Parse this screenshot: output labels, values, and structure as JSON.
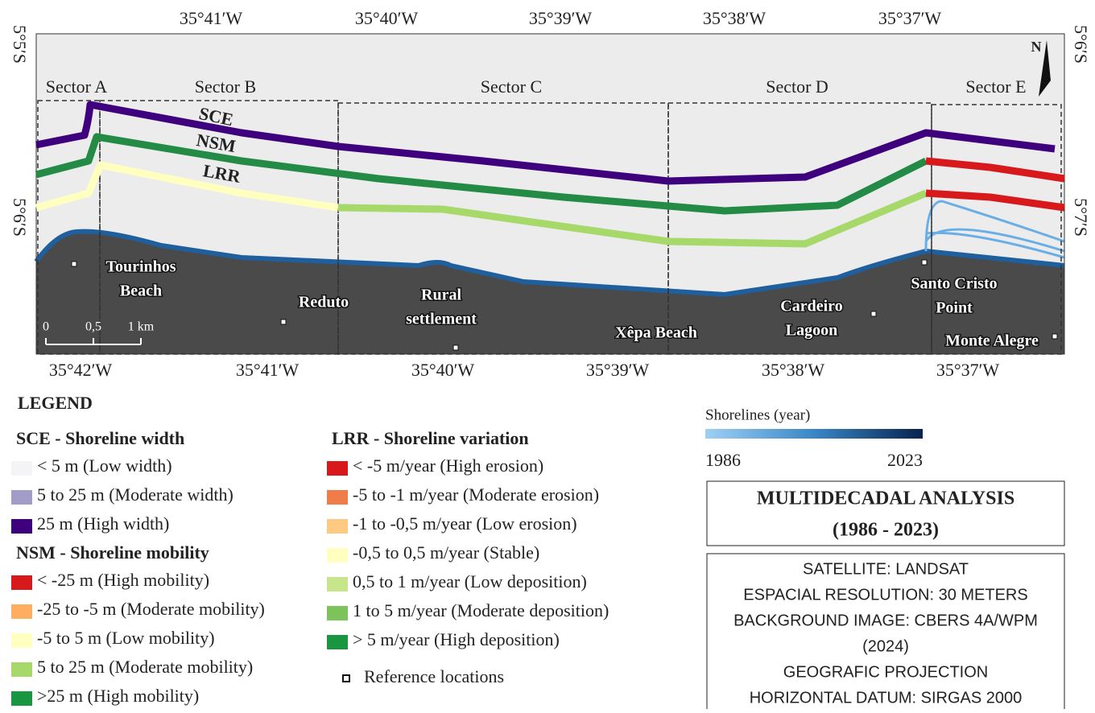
{
  "map": {
    "top_labels": [
      "35°41′W",
      "35°40′W",
      "35°39′W",
      "35°38′W",
      "35°37′W"
    ],
    "bottom_labels": [
      "35°42′W",
      "35°41′W",
      "35°40′W",
      "35°39′W",
      "35°38′W",
      "35°37′W"
    ],
    "left_labels": [
      "5°5′S",
      "5°6′S"
    ],
    "right_labels": [
      "5°6′S",
      "5°7′S"
    ],
    "sectors": [
      "Sector A",
      "Sector B",
      "Sector C",
      "Sector D",
      "Sector E"
    ],
    "line_labels": [
      "SCE",
      "NSM",
      "LRR"
    ],
    "places": [
      [
        "Tourinhos",
        "Beach"
      ],
      [
        "Reduto"
      ],
      [
        "Rural",
        "settlement"
      ],
      [
        "Xêpa Beach"
      ],
      [
        "Cardeiro",
        "Lagoon"
      ],
      [
        "Santo Cristo",
        "Point"
      ],
      [
        "Monte Alegre"
      ]
    ],
    "scale": [
      "0",
      "0,5",
      "1 km"
    ],
    "north": "N"
  },
  "legend": {
    "title": "LEGEND",
    "groups": [
      {
        "title": "SCE - Shoreline width",
        "items": [
          {
            "label": "< 5 m (Low width)",
            "color": "#f4f4f6"
          },
          {
            "label": "5 to 25 m (Moderate width)",
            "color": "#a29cc8"
          },
          {
            "label": "25 m (High width)",
            "color": "#3f007d"
          }
        ]
      },
      {
        "title": "NSM - Shoreline mobility",
        "items": [
          {
            "label": "< -25 m (High mobility)",
            "color": "#d7191c"
          },
          {
            "label": "-25 to -5 m (Moderate mobility)",
            "color": "#fdae61"
          },
          {
            "label": "-5 to 5 m (Low mobility)",
            "color": "#ffffbf"
          },
          {
            "label": "5 to 25 m (Moderate mobility)",
            "color": "#a6d96a"
          },
          {
            "label": ">25 m (High mobility)",
            "color": "#1a9641"
          }
        ]
      },
      {
        "title": "LRR - Shoreline variation",
        "items": [
          {
            "label": "< -5 m/year (High erosion)",
            "color": "#d7191c"
          },
          {
            "label": "-5 to -1 m/year (Moderate erosion)",
            "color": "#f07c4a"
          },
          {
            "label": "-1 to -0,5 m/year (Low erosion)",
            "color": "#fec980"
          },
          {
            "label": "-0,5 to 0,5 m/year (Stable)",
            "color": "#ffffbf"
          },
          {
            "label": "0,5 to 1 m/year (Low deposition)",
            "color": "#c7e689"
          },
          {
            "label": "1 to 5 m/year (Moderate deposition)",
            "color": "#7bc35a"
          },
          {
            "label": "> 5 m/year (High deposition)",
            "color": "#1a9641"
          }
        ]
      }
    ],
    "reference": "Reference locations"
  },
  "shorelines": {
    "title": "Shorelines (year)",
    "start": "1986",
    "end": "2023"
  },
  "analysis": {
    "title": "MULTIDECADAL ANALYSIS",
    "period": "(1986 - 2023)"
  },
  "info": [
    "SATELLITE: LANDSAT",
    "ESPACIAL RESOLUTION: 30 METERS",
    "BACKGROUND IMAGE: CBERS 4A/WPM",
    "(2024)",
    "GEOGRAFIC PROJECTION",
    "HORIZONTAL DATUM: SIRGAS 2000"
  ]
}
